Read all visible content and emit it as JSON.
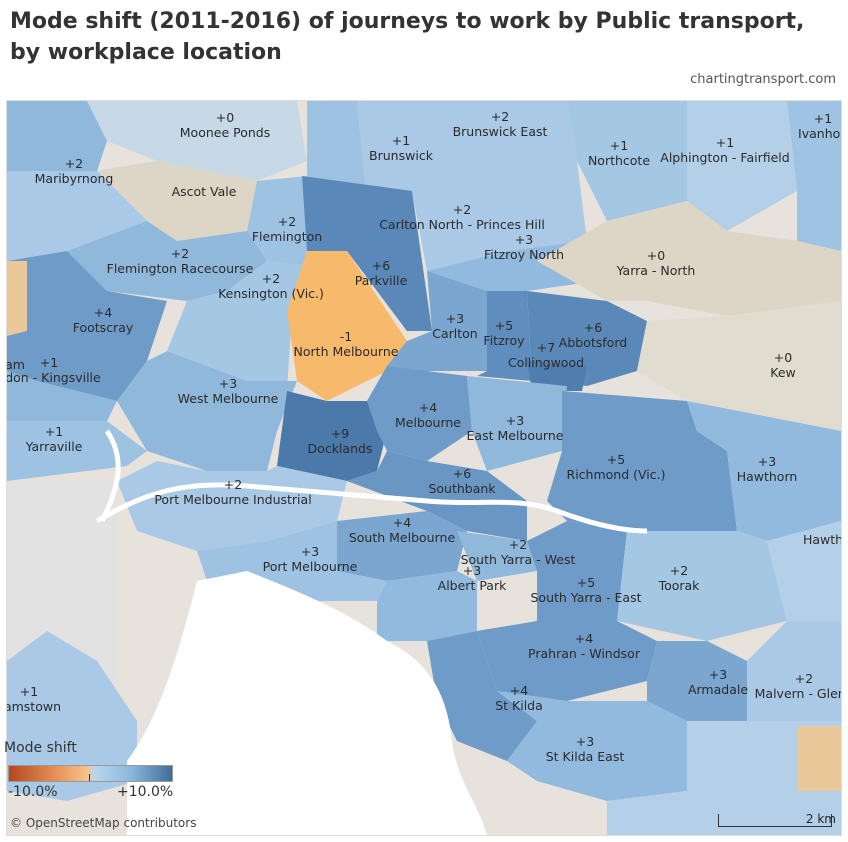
{
  "header": {
    "title": "Mode shift (2011-2016) of journeys to work by Public transport, by workplace location",
    "credit": "chartingtransport.com"
  },
  "legend": {
    "title": "Mode shift",
    "min_label": "-10.0%",
    "max_label": "+10.0%",
    "colors": {
      "negative": "#b5471b",
      "slight_negative": "#f5c38a",
      "slight_positive": "#bcd6ec",
      "positive": "#3d6d9a"
    }
  },
  "attribution": "© OpenStreetMap contributors",
  "scale_bar": {
    "label": "2 km"
  },
  "areas": [
    {
      "name": "Moonee Ponds",
      "shift": "+0"
    },
    {
      "name": "Brunswick East",
      "shift": "+2"
    },
    {
      "name": "Brunswick",
      "shift": "+1"
    },
    {
      "name": "Northcote",
      "shift": "+1"
    },
    {
      "name": "Alphington - Fairfield",
      "shift": "+1"
    },
    {
      "name": "Ivanhoe",
      "shift": "+1"
    },
    {
      "name": "Maribyrnong",
      "shift": "+2"
    },
    {
      "name": "Ascot Vale",
      "shift": ""
    },
    {
      "name": "Flemington",
      "shift": "+2"
    },
    {
      "name": "Carlton North - Princes Hill",
      "shift": "+2"
    },
    {
      "name": "Fitzroy North",
      "shift": "+3"
    },
    {
      "name": "Flemington Racecourse",
      "shift": "+2"
    },
    {
      "name": "Parkville",
      "shift": "+6"
    },
    {
      "name": "Kensington (Vic.)",
      "shift": "+2"
    },
    {
      "name": "Yarra - North",
      "shift": "+0"
    },
    {
      "name": "Footscray",
      "shift": "+4"
    },
    {
      "name": "Carlton",
      "shift": "+3"
    },
    {
      "name": "Fitzroy",
      "shift": "+5"
    },
    {
      "name": "Abbotsford",
      "shift": "+6"
    },
    {
      "name": "North Melbourne",
      "shift": "-1"
    },
    {
      "name": "Collingwood",
      "shift": "+7"
    },
    {
      "name": "ddon - Kingsville",
      "shift": "+1"
    },
    {
      "name": "Kew",
      "shift": "+0"
    },
    {
      "name": "West Melbourne",
      "shift": "+3"
    },
    {
      "name": "Melbourne",
      "shift": "+4"
    },
    {
      "name": "East Melbourne",
      "shift": "+3"
    },
    {
      "name": "Yarraville",
      "shift": "+1"
    },
    {
      "name": "Docklands",
      "shift": "+9"
    },
    {
      "name": "Southbank",
      "shift": "+6"
    },
    {
      "name": "Richmond (Vic.)",
      "shift": "+5"
    },
    {
      "name": "Hawthorn",
      "shift": "+3"
    },
    {
      "name": "Port Melbourne Industrial",
      "shift": "+2"
    },
    {
      "name": "South Melbourne",
      "shift": "+4"
    },
    {
      "name": "South Yarra - West",
      "shift": "+2"
    },
    {
      "name": "Hawth",
      "shift": ""
    },
    {
      "name": "Port Melbourne",
      "shift": "+3"
    },
    {
      "name": "Albert Park",
      "shift": "+3"
    },
    {
      "name": "South Yarra - East",
      "shift": "+5"
    },
    {
      "name": "Toorak",
      "shift": "+2"
    },
    {
      "name": "Prahran - Windsor",
      "shift": "+4"
    },
    {
      "name": "Armadale",
      "shift": "+3"
    },
    {
      "name": "Malvern - Glen I",
      "shift": "+2"
    },
    {
      "name": "liamstown",
      "shift": "+1"
    },
    {
      "name": "St Kilda",
      "shift": "+4"
    },
    {
      "name": "St Kilda East",
      "shift": "+3"
    },
    {
      "name": "am",
      "shift": ""
    }
  ]
}
